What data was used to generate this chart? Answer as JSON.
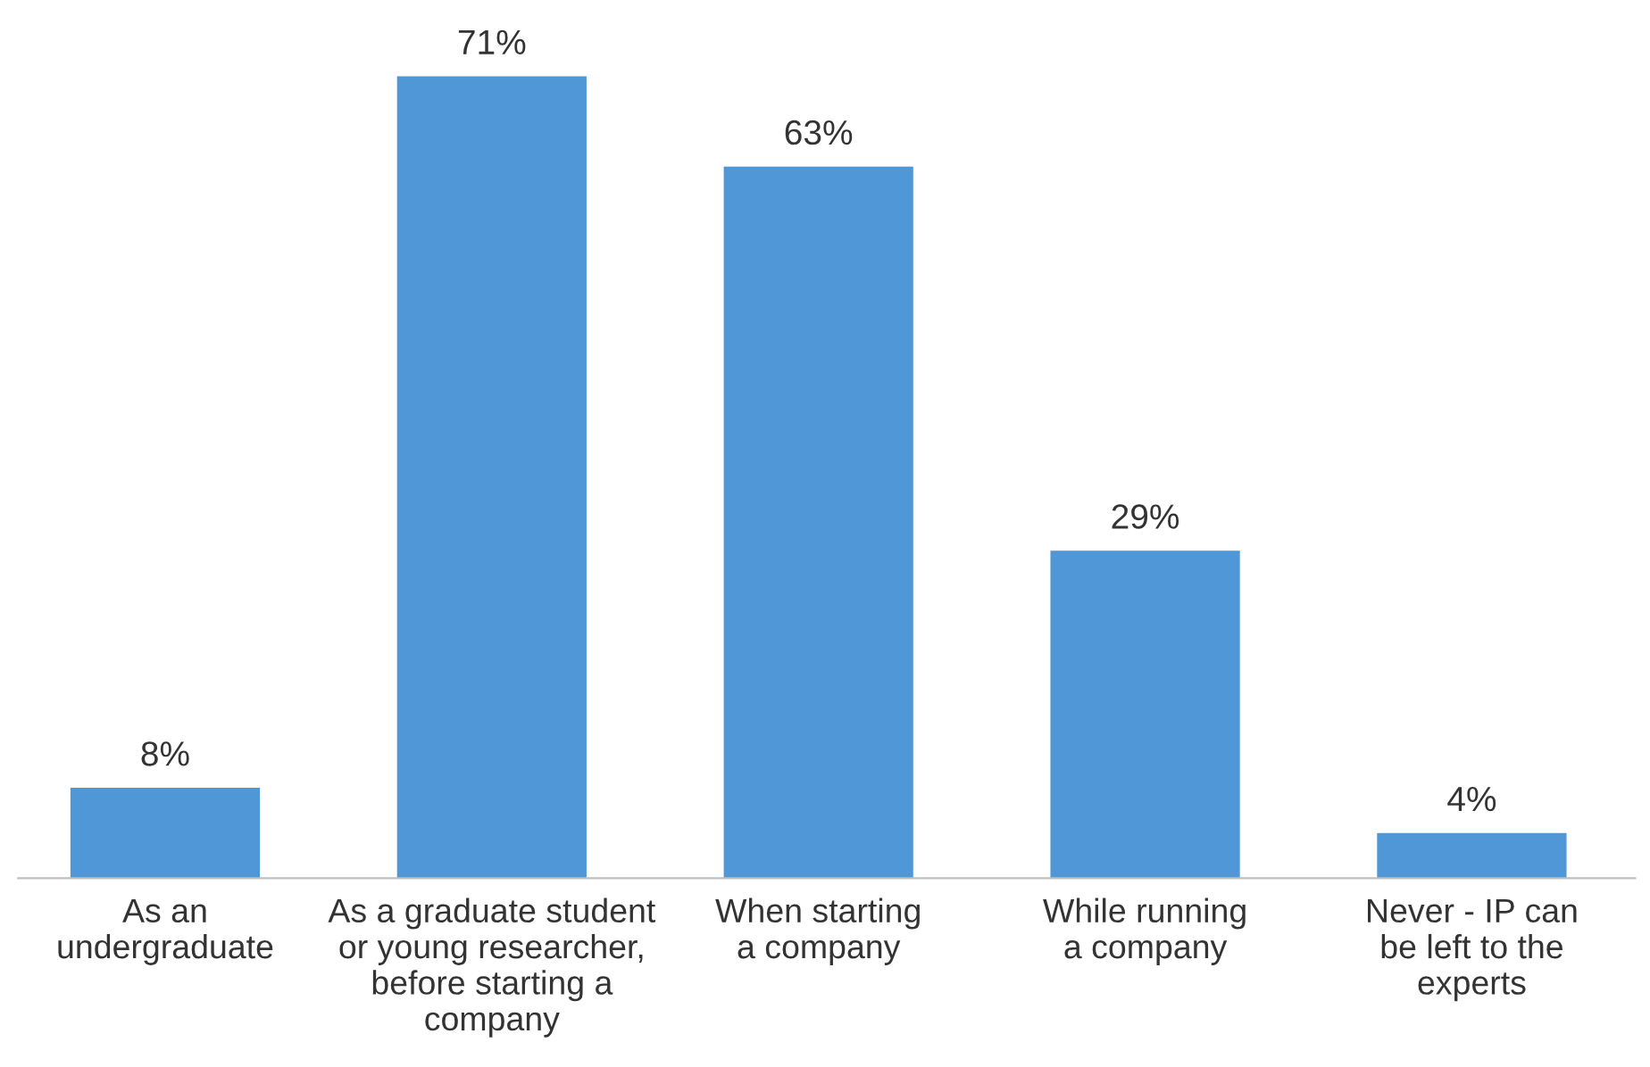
{
  "chart_data": {
    "type": "bar",
    "categories": [
      "As an\nundergraduate",
      "As a graduate student\nor young researcher,\nbefore starting a\ncompany",
      "When starting\na company",
      "While running\na company",
      "Never - IP can\nbe left to the\nexperts"
    ],
    "values": [
      8,
      71,
      63,
      29,
      4
    ],
    "color": "#5097d8",
    "data_labels": true,
    "value_labels": [
      "8%",
      "71%",
      "63%",
      "29%",
      "4%"
    ],
    "tick_labels": "x"
  }
}
